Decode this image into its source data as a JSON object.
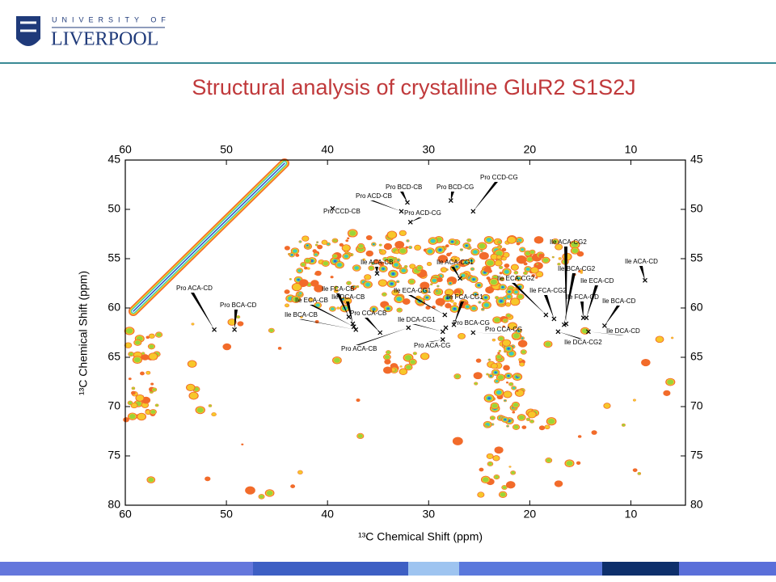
{
  "header": {
    "university_line": "UNIVERSITY OF",
    "name": "LIVERPOOL"
  },
  "chart_data": {
    "type": "contour",
    "title": "Structural analysis of crystalline GluR2 S1S2J",
    "x_label": "¹³C Chemical Shift (ppm)",
    "y_label": "¹³C Chemical Shift (ppm)",
    "xlim": [
      60,
      4.6
    ],
    "ylim": [
      45,
      80
    ],
    "xticks": [
      60,
      50,
      40,
      30,
      20,
      10
    ],
    "yticks": [
      45,
      50,
      55,
      60,
      65,
      70,
      75,
      80
    ],
    "peaks": [
      {
        "label": "Pro ACA-CD",
        "x": 51.2,
        "y": 62.2
      },
      {
        "label": "Pro BCA-CD",
        "x": 49.2,
        "y": 62.2
      },
      {
        "label": "Pro CCD-CB",
        "x": 39.5,
        "y": 49.9
      },
      {
        "label": "Pro ACD-CB",
        "x": 32.7,
        "y": 50.2
      },
      {
        "label": "Pro BCD-CB",
        "x": 32.1,
        "y": 49.3
      },
      {
        "label": "Pro ACD-CG",
        "x": 31.8,
        "y": 51.3
      },
      {
        "label": "Pro BCD-CG",
        "x": 27.8,
        "y": 49.1
      },
      {
        "label": "Pro CCD-CG",
        "x": 25.6,
        "y": 50.2
      },
      {
        "label": "Ile ACA-CB",
        "x": 35.1,
        "y": 56.5
      },
      {
        "label": "Ile ACA-CG1",
        "x": 26.9,
        "y": 57.0
      },
      {
        "label": "Ile FCA-CB",
        "x": 37.9,
        "y": 60.9
      },
      {
        "label": "Ile DCA-CB",
        "x": 37.5,
        "y": 61.6
      },
      {
        "label": "Ile ECA-CB",
        "x": 37.4,
        "y": 61.9
      },
      {
        "label": "Ile BCA-CB",
        "x": 37.2,
        "y": 62.2
      },
      {
        "label": "Pro CCA-CB",
        "x": 34.8,
        "y": 62.5
      },
      {
        "label": "Ile ECA-CG1",
        "x": 28.4,
        "y": 60.7
      },
      {
        "label": "Ile FCA-CG1",
        "x": 27.5,
        "y": 61.7
      },
      {
        "label": "Ile DCA-CG1",
        "x": 28.6,
        "y": 62.4
      },
      {
        "label": "Pro BCA-CG",
        "x": 28.3,
        "y": 62.0
      },
      {
        "label": "Pro CCA-CG",
        "x": 25.6,
        "y": 62.5
      },
      {
        "label": "Pro ACA-CB",
        "x": 32.0,
        "y": 62.0
      },
      {
        "label": "Pro ACA-CG",
        "x": 28.6,
        "y": 63.2
      },
      {
        "label": "Ile ACA-CG2",
        "x": 16.4,
        "y": 61.6
      },
      {
        "label": "Ile BCA-CG2",
        "x": 16.6,
        "y": 61.7
      },
      {
        "label": "Ile ECA-CG2",
        "x": 18.4,
        "y": 60.7
      },
      {
        "label": "Ile FCA-CG2",
        "x": 17.6,
        "y": 61.1
      },
      {
        "label": "Ile ECA-CD",
        "x": 14.4,
        "y": 61.0
      },
      {
        "label": "Ile FCA-CD",
        "x": 14.7,
        "y": 61.0
      },
      {
        "label": "Ile BCA-CD",
        "x": 12.6,
        "y": 61.8
      },
      {
        "label": "Ile ACA-CD",
        "x": 8.6,
        "y": 57.2
      },
      {
        "label": "Ile DCA-CD",
        "x": 14.2,
        "y": 62.4
      },
      {
        "label": "Ile DCA-CG2",
        "x": 17.2,
        "y": 62.4
      }
    ]
  }
}
